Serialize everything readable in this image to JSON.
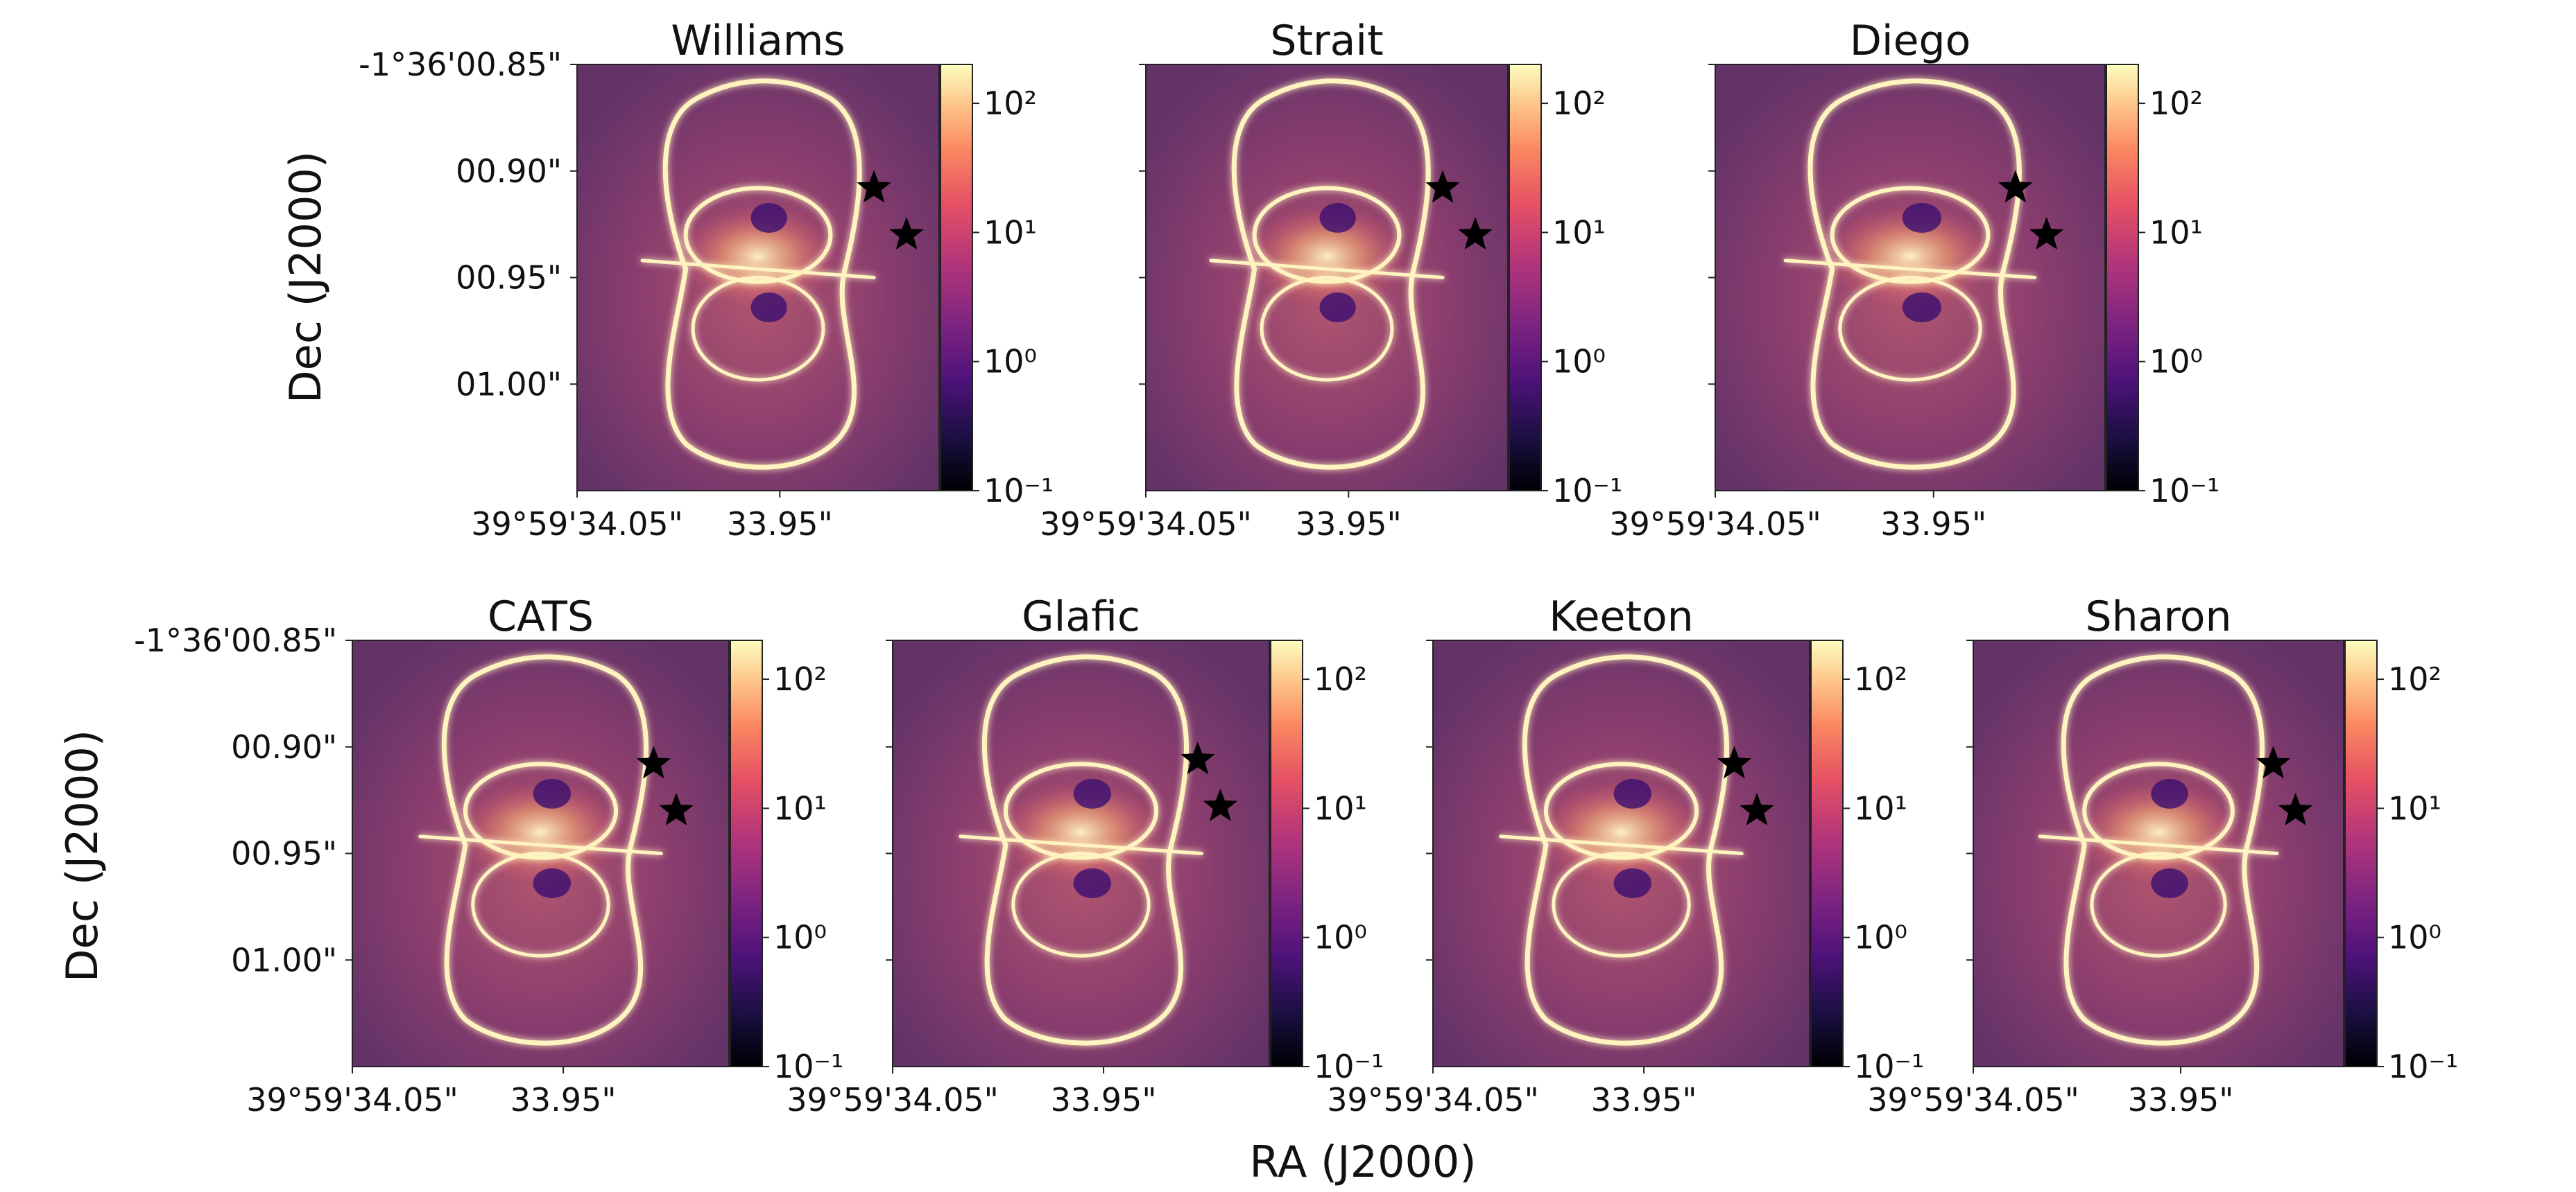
{
  "figure": {
    "xlabel": "RA (J2000)",
    "ylabel": "Dec (J2000)",
    "colormap": "magma",
    "grid": false
  },
  "chart_data": [
    {
      "type": "heatmap",
      "title": "Williams",
      "x_ticks": [
        "39°59'34.05\"",
        "33.95\""
      ],
      "y_ticks": [
        "-1°36'00.85\"",
        "00.90\"",
        "00.95\"",
        "01.00\""
      ],
      "colorbar_ticks": [
        "10²",
        "10¹",
        "10⁰",
        "10⁻¹"
      ],
      "colorbar_range": [
        0.1,
        200
      ],
      "colorbar_scale": "log",
      "markers": [
        {
          "type": "star",
          "x": 0.82,
          "y": 0.29
        },
        {
          "type": "star",
          "x": 0.91,
          "y": 0.4
        }
      ]
    },
    {
      "type": "heatmap",
      "title": "Strait",
      "x_ticks": [
        "39°59'34.05\"",
        "33.95\""
      ],
      "y_ticks": [],
      "colorbar_ticks": [
        "10²",
        "10¹",
        "10⁰",
        "10⁻¹"
      ],
      "colorbar_range": [
        0.1,
        200
      ],
      "colorbar_scale": "log",
      "markers": [
        {
          "type": "star",
          "x": 0.82,
          "y": 0.29
        },
        {
          "type": "star",
          "x": 0.91,
          "y": 0.4
        }
      ]
    },
    {
      "type": "heatmap",
      "title": "Diego",
      "x_ticks": [
        "39°59'34.05\"",
        "33.95\""
      ],
      "y_ticks": [],
      "colorbar_ticks": [
        "10²",
        "10¹",
        "10⁰",
        "10⁻¹"
      ],
      "colorbar_range": [
        0.1,
        200
      ],
      "colorbar_scale": "log",
      "markers": [
        {
          "type": "star",
          "x": 0.77,
          "y": 0.29
        },
        {
          "type": "star",
          "x": 0.85,
          "y": 0.4
        }
      ]
    },
    {
      "type": "heatmap",
      "title": "CATS",
      "x_ticks": [
        "39°59'34.05\"",
        "33.95\""
      ],
      "y_ticks": [
        "-1°36'00.85\"",
        "00.90\"",
        "00.95\"",
        "01.00\""
      ],
      "colorbar_ticks": [
        "10²",
        "10¹",
        "10⁰",
        "10⁻¹"
      ],
      "colorbar_range": [
        0.1,
        200
      ],
      "colorbar_scale": "log",
      "markers": [
        {
          "type": "star",
          "x": 0.8,
          "y": 0.29
        },
        {
          "type": "star",
          "x": 0.86,
          "y": 0.4
        }
      ]
    },
    {
      "type": "heatmap",
      "title": "Glafic",
      "x_ticks": [
        "39°59'34.05\"",
        "33.95\""
      ],
      "y_ticks": [],
      "colorbar_ticks": [
        "10²",
        "10¹",
        "10⁰",
        "10⁻¹"
      ],
      "colorbar_range": [
        0.1,
        200
      ],
      "colorbar_scale": "log",
      "markers": [
        {
          "type": "star",
          "x": 0.81,
          "y": 0.28
        },
        {
          "type": "star",
          "x": 0.87,
          "y": 0.39
        }
      ]
    },
    {
      "type": "heatmap",
      "title": "Keeton",
      "x_ticks": [
        "39°59'34.05\"",
        "33.95\""
      ],
      "y_ticks": [],
      "colorbar_ticks": [
        "10²",
        "10¹",
        "10⁰",
        "10⁻¹"
      ],
      "colorbar_range": [
        0.1,
        200
      ],
      "colorbar_scale": "log",
      "markers": [
        {
          "type": "star",
          "x": 0.8,
          "y": 0.29
        },
        {
          "type": "star",
          "x": 0.86,
          "y": 0.4
        }
      ]
    },
    {
      "type": "heatmap",
      "title": "Sharon",
      "x_ticks": [
        "39°59'34.05\"",
        "33.95\""
      ],
      "y_ticks": [],
      "colorbar_ticks": [
        "10²",
        "10¹",
        "10⁰",
        "10⁻¹"
      ],
      "colorbar_range": [
        0.1,
        200
      ],
      "colorbar_scale": "log",
      "markers": [
        {
          "type": "star",
          "x": 0.81,
          "y": 0.29
        },
        {
          "type": "star",
          "x": 0.87,
          "y": 0.4
        }
      ]
    }
  ]
}
